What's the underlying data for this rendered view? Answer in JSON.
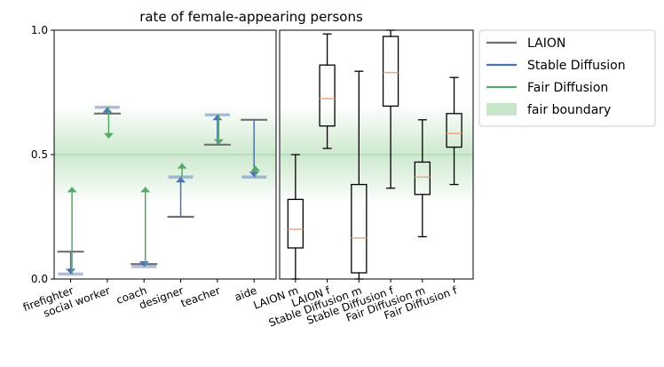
{
  "chart_data": {
    "type": "range-and-box",
    "title": "rate of female-appearing persons",
    "ylim": [
      0,
      1
    ],
    "yticks": [
      {
        "v": 0,
        "label": "0.0"
      },
      {
        "v": 0.5,
        "label": "0.5"
      },
      {
        "v": 1,
        "label": "1.0"
      }
    ],
    "fair_band": {
      "center": 0.5,
      "half_width": 0.2
    },
    "colors": {
      "laion": "#707070",
      "sd": "#4c72b0",
      "fd": "#55a868",
      "fair": "#c8e6c9",
      "median": "#f4a582"
    },
    "occupations": {
      "categories": [
        "firefighter",
        "social worker",
        "coach",
        "designer",
        "teacher",
        "aide"
      ],
      "laion": [
        0.11,
        0.665,
        0.06,
        0.25,
        0.54,
        0.64
      ],
      "stable_diffusion": [
        0.02,
        0.69,
        0.05,
        0.41,
        0.66,
        0.41
      ],
      "fair_diffusion": [
        0.37,
        0.565,
        0.37,
        0.465,
        0.54,
        0.455
      ]
    },
    "boxes": [
      {
        "label": "LAION m",
        "min": 0.0,
        "q1": 0.125,
        "median": 0.2,
        "q3": 0.32,
        "max": 0.5
      },
      {
        "label": "LAION f",
        "min": 0.525,
        "q1": 0.615,
        "median": 0.725,
        "q3": 0.86,
        "max": 0.985
      },
      {
        "label": "Stable Diffusion m",
        "min": 0.0,
        "q1": 0.025,
        "median": 0.165,
        "q3": 0.38,
        "max": 0.835
      },
      {
        "label": "Stable Diffusion f",
        "min": 0.365,
        "q1": 0.695,
        "median": 0.83,
        "q3": 0.975,
        "max": 1.0
      },
      {
        "label": "Fair Diffusion m",
        "min": 0.17,
        "q1": 0.34,
        "median": 0.41,
        "q3": 0.47,
        "max": 0.64
      },
      {
        "label": "Fair Diffusion f",
        "min": 0.38,
        "q1": 0.53,
        "median": 0.585,
        "q3": 0.665,
        "max": 0.81
      }
    ],
    "legend": {
      "position": "top-right, outside plot",
      "entries": [
        {
          "key": "laion",
          "label": "LAION",
          "kind": "line"
        },
        {
          "key": "sd",
          "label": "Stable Diffusion",
          "kind": "line"
        },
        {
          "key": "fd",
          "label": "Fair Diffusion",
          "kind": "line"
        },
        {
          "key": "fair",
          "label": "fair boundary",
          "kind": "patch"
        }
      ]
    }
  }
}
